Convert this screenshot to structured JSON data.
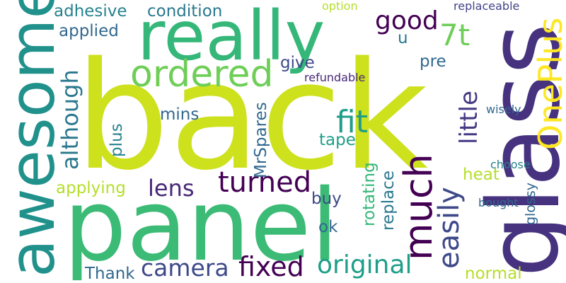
{
  "words": {
    "back": {
      "text": "back",
      "color": "#cde11d"
    },
    "panel": {
      "text": "panel",
      "color": "#3bbb75"
    },
    "glass": {
      "text": "glass",
      "color": "#46327e"
    },
    "awesome": {
      "text": "awesome",
      "color": "#21918c"
    },
    "really": {
      "text": "really",
      "color": "#35b779"
    },
    "ordered": {
      "text": "ordered",
      "color": "#6ece58"
    },
    "oneplus": {
      "text": "OnePlus",
      "color": "#fde725"
    },
    "much": {
      "text": "much",
      "color": "#440154"
    },
    "fit": {
      "text": "fit",
      "color": "#1f9e89"
    },
    "turned": {
      "text": "turned",
      "color": "#440154"
    },
    "lens": {
      "text": "lens",
      "color": "#482878"
    },
    "camera": {
      "text": "camera",
      "color": "#3e4989"
    },
    "fixed": {
      "text": "fixed",
      "color": "#440154"
    },
    "original": {
      "text": "original",
      "color": "#1f9e89"
    },
    "easily": {
      "text": "easily",
      "color": "#3e4989"
    },
    "although": {
      "text": "although",
      "color": "#2a788e"
    },
    "little": {
      "text": "little",
      "color": "#443983"
    },
    "7t": {
      "text": "7t",
      "color": "#6ece58"
    },
    "good": {
      "text": "good",
      "color": "#440154"
    },
    "adhesive": {
      "text": "adhesive",
      "color": "#26828e"
    },
    "condition": {
      "text": "condition",
      "color": "#2a788e"
    },
    "applied": {
      "text": "applied",
      "color": "#31688e"
    },
    "give": {
      "text": "give",
      "color": "#3e4989"
    },
    "pre": {
      "text": "pre",
      "color": "#31688e"
    },
    "u": {
      "text": "u",
      "color": "#2a788e"
    },
    "refundable": {
      "text": "refundable",
      "color": "#482878"
    },
    "mins": {
      "text": "mins",
      "color": "#31688e"
    },
    "plus": {
      "text": "plus",
      "color": "#26828e"
    },
    "tape": {
      "text": "tape",
      "color": "#1f9e89"
    },
    "mrspares": {
      "text": "MrSpares",
      "color": "#31688e"
    },
    "heat": {
      "text": "heat",
      "color": "#b5de2b"
    },
    "applying": {
      "text": "applying",
      "color": "#b5de2b"
    },
    "buy": {
      "text": "buy",
      "color": "#3e4989"
    },
    "rotating": {
      "text": "rotating",
      "color": "#35b779"
    },
    "replace": {
      "text": "replace",
      "color": "#2a788e"
    },
    "ok": {
      "text": "ok",
      "color": "#31688e"
    },
    "thank": {
      "text": "Thank",
      "color": "#31688e"
    },
    "normal": {
      "text": "normal",
      "color": "#b5de2b"
    },
    "option": {
      "text": "option",
      "color": "#b5de2b"
    },
    "replaceable": {
      "text": "replaceable",
      "color": "#414487"
    },
    "wisely": {
      "text": "wisely",
      "color": "#31688e"
    },
    "choose": {
      "text": "choose",
      "color": "#26828e"
    },
    "glossy": {
      "text": "glossy",
      "color": "#31688e"
    },
    "bought": {
      "text": "bought",
      "color": "#31688e"
    }
  }
}
